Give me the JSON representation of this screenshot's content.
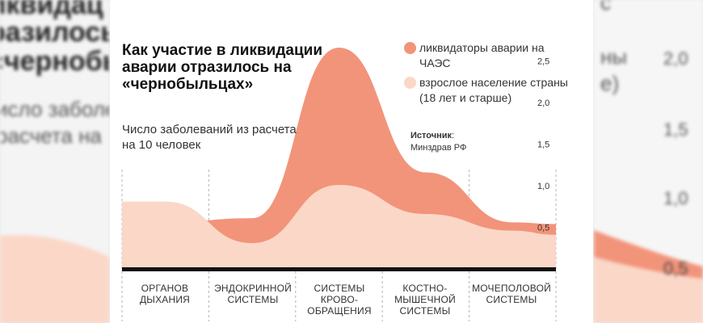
{
  "chart_data": {
    "type": "area",
    "title": "Как участие в ликвидации аварии отразилось на «чернобыльцах»",
    "subtitle": "Число заболеваний из расчета на 10 человек",
    "categories": [
      "ОРГАНОВ ДЫХАНИЯ",
      "ЭНДОКРИННОЙ СИСТЕМЫ",
      "СИСТЕМЫ КРОВО-ОБРАЩЕНИЯ",
      "КОСТНО-МЫШЕЧНОЙ СИСТЕМЫ",
      "МОЧЕПОЛОВОЙ СИСТЕМЫ"
    ],
    "series": [
      {
        "name": "ликвидаторы аварии на ЧАЭС",
        "color": "#f2947a",
        "values": [
          0.55,
          0.6,
          2.65,
          1.15,
          0.55
        ]
      },
      {
        "name": "взрослое население страны (18 лет и старше)",
        "color": "#fbd7c8",
        "values": [
          0.8,
          0.3,
          1.0,
          0.65,
          0.45
        ]
      }
    ],
    "y_ticks": [
      "0,5",
      "1,0",
      "1,5",
      "2,0",
      "2,5"
    ],
    "y_tick_values": [
      0.5,
      1.0,
      1.5,
      2.0,
      2.5
    ],
    "ylim": [
      0,
      2.7
    ]
  },
  "legend": {
    "series1_label": "ликвидаторы аварии на ЧАЭС",
    "series2_label": "взрослое население страны (18 лет и старше)"
  },
  "source": {
    "label": "Источник",
    "value": "Минздрав РФ"
  },
  "categories_display": [
    {
      "line1": "ОРГАНОВ",
      "line2": "ДЫХАНИЯ",
      "line3": ""
    },
    {
      "line1": "ЭНДОКРИННОЙ",
      "line2": "СИСТЕМЫ",
      "line3": ""
    },
    {
      "line1": "СИСТЕМЫ",
      "line2": "КРОВО-",
      "line3": "ОБРАЩЕНИЯ"
    },
    {
      "line1": "КОСТНО-",
      "line2": "МЫШЕЧНОЙ",
      "line3": "СИСТЕМЫ"
    },
    {
      "line1": "МОЧЕПОЛОВОЙ",
      "line2": "СИСТЕМЫ",
      "line3": ""
    }
  ],
  "echo_left": {
    "line1": "ликвидац",
    "line2": "разилось",
    "line3": "«чернобы",
    "line4": "исло заболев",
    "line5": "расчета на"
  },
  "echo_right": {
    "line1": "с",
    "line2": "ны",
    "line3": "е)",
    "tick1": "2,0",
    "tick2": "1,5",
    "tick3": "1,0",
    "tick4": "0,5"
  },
  "colors": {
    "liquidators": "#f2947a",
    "population": "#fbd7c8",
    "axis": "#111111",
    "divider": "#b5b5b5"
  }
}
